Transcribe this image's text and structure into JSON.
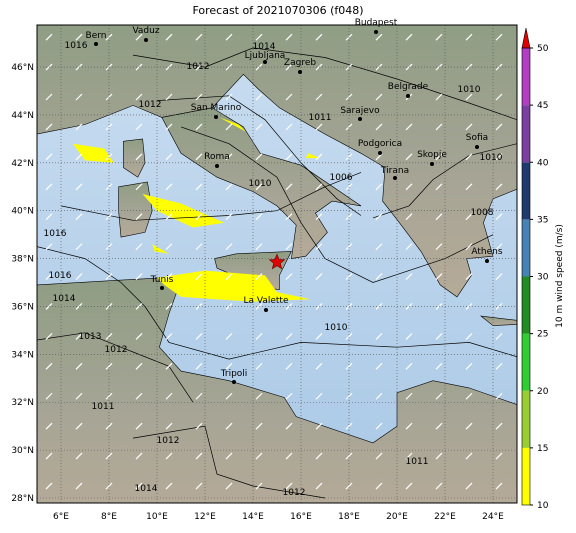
{
  "title": "Forecast of 2021070306 (f048)",
  "lon_ticks": [
    {
      "value": 6,
      "label": "6°E"
    },
    {
      "value": 8,
      "label": "8°E"
    },
    {
      "value": 10,
      "label": "10°E"
    },
    {
      "value": 12,
      "label": "12°E"
    },
    {
      "value": 14,
      "label": "14°E"
    },
    {
      "value": 16,
      "label": "16°E"
    },
    {
      "value": 18,
      "label": "18°E"
    },
    {
      "value": 20,
      "label": "20°E"
    },
    {
      "value": 22,
      "label": "22°E"
    },
    {
      "value": 24,
      "label": "24°E"
    }
  ],
  "lat_ticks": [
    {
      "value": 28,
      "label": "28°N"
    },
    {
      "value": 30,
      "label": "30°N"
    },
    {
      "value": 32,
      "label": "32°N"
    },
    {
      "value": 34,
      "label": "34°N"
    },
    {
      "value": 36,
      "label": "36°N"
    },
    {
      "value": 38,
      "label": "38°N"
    },
    {
      "value": 40,
      "label": "40°N"
    },
    {
      "value": 42,
      "label": "42°N"
    },
    {
      "value": 44,
      "label": "44°N"
    },
    {
      "value": 46,
      "label": "46°N"
    }
  ],
  "cities": [
    "Bern",
    "Vaduz",
    "Ljubljana",
    "Zagreb",
    "Budapest",
    "San Marino",
    "Belgrade",
    "Sarajevo",
    "Roma",
    "Podgorica",
    "Sofia",
    "Skopje",
    "Tirana",
    "Athens",
    "Tunis",
    "La Valette",
    "Tripoli"
  ],
  "isobar_labels": [
    1016,
    1014,
    1012,
    1012,
    1010,
    1006,
    1010,
    1008,
    1016,
    1016,
    1014,
    1013,
    1012,
    1010,
    1011,
    1012,
    1014,
    1012,
    1011,
    1011,
    1010
  ],
  "colorbar": {
    "label": "10 m wind speed (m/s)",
    "ticks": [
      10,
      15,
      20,
      25,
      30,
      35,
      40,
      45,
      50
    ],
    "colors": [
      "#ffff00",
      "#9acd32",
      "#32cd32",
      "#228b22",
      "#4682b4",
      "#1e3a6e",
      "#7b3fa0",
      "#b040c0"
    ],
    "extend_color": "#e00000"
  }
}
